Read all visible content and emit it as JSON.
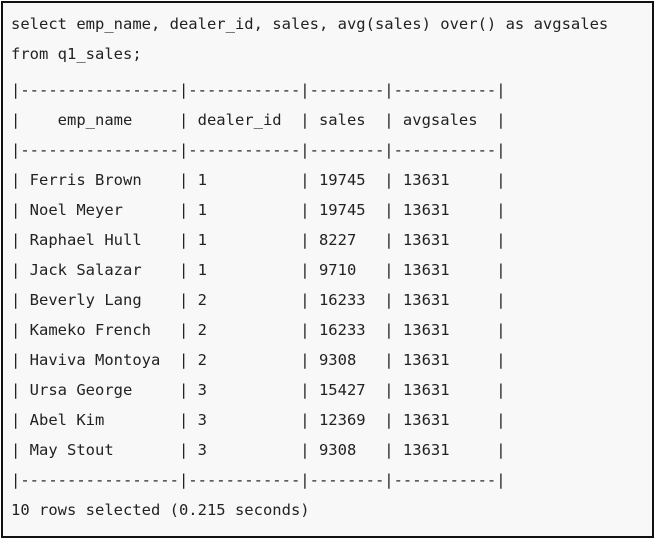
{
  "query": {
    "line1": "select emp_name, dealer_id, sales, avg(sales) over() as avgsales",
    "line2": "from q1_sales;"
  },
  "table": {
    "border_top": "|-----------------|------------|--------|-----------|",
    "header": "|    emp_name     | dealer_id  | sales  | avgsales  |",
    "border_mid": "|-----------------|------------|--------|-----------|",
    "rows": [
      "| Ferris Brown    | 1          | 19745  | 13631     |",
      "| Noel Meyer      | 1          | 19745  | 13631     |",
      "| Raphael Hull    | 1          | 8227   | 13631     |",
      "| Jack Salazar    | 1          | 9710   | 13631     |",
      "| Beverly Lang    | 2          | 16233  | 13631     |",
      "| Kameko French   | 2          | 16233  | 13631     |",
      "| Haviva Montoya  | 2          | 9308   | 13631     |",
      "| Ursa George     | 3          | 15427  | 13631     |",
      "| Abel Kim        | 3          | 12369  | 13631     |",
      "| May Stout       | 3          | 9308   | 13631     |"
    ],
    "border_bottom": "|-----------------|------------|--------|-----------|"
  },
  "footer": "10 rows selected (0.215 seconds)"
}
